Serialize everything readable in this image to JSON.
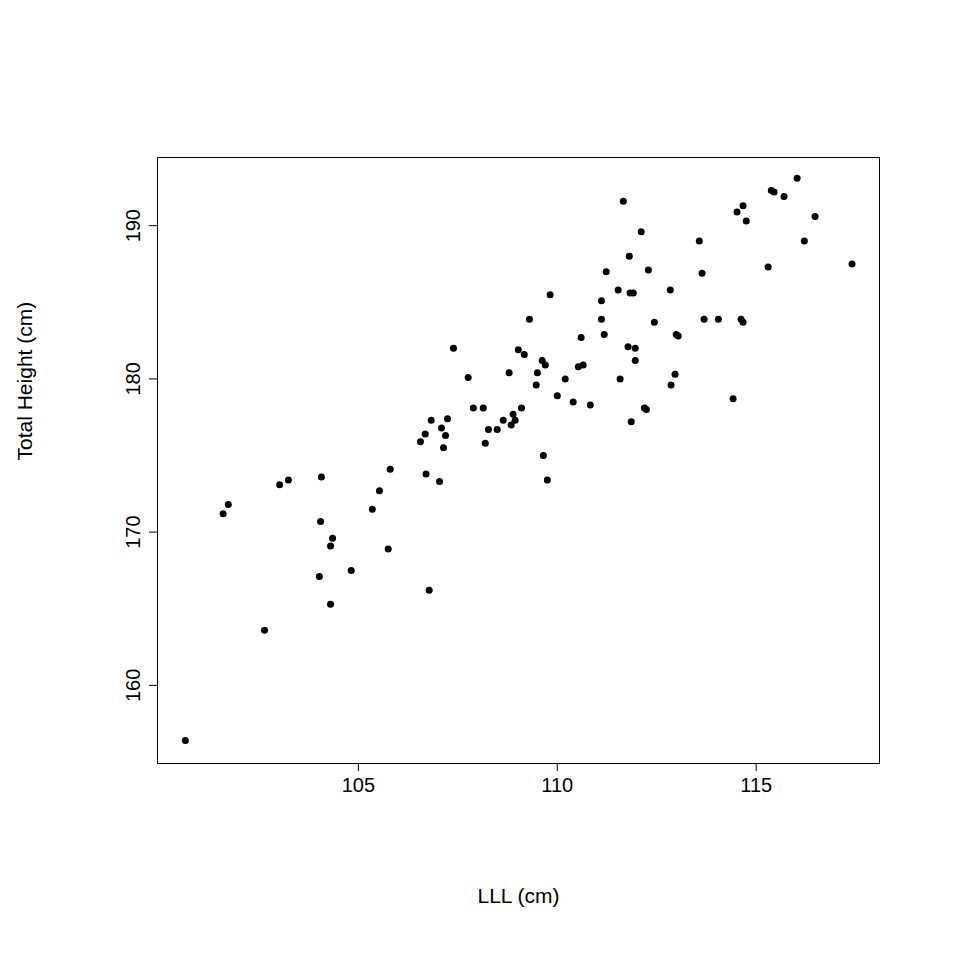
{
  "chart_data": {
    "type": "scatter",
    "x_label": "LLL (cm)",
    "y_label": "Total Height (cm)",
    "color": "#000000",
    "marker": "circle",
    "xlim": [
      99.95,
      118.1
    ],
    "ylim": [
      154.9,
      194.45
    ],
    "xticks": [
      105,
      110,
      115
    ],
    "yticks": [
      160,
      170,
      180,
      190
    ],
    "x": [
      100.65,
      101.6,
      101.73,
      102.64,
      103.02,
      103.24,
      104.07,
      104.05,
      104.02,
      104.3,
      104.3,
      104.35,
      104.82,
      105.35,
      105.53,
      105.75,
      105.8,
      106.56,
      106.68,
      106.7,
      106.78,
      106.83,
      107.04,
      107.09,
      107.14,
      107.19,
      107.24,
      107.39,
      107.76,
      107.89,
      108.14,
      108.19,
      108.27,
      108.49,
      108.64,
      108.79,
      108.84,
      108.89,
      108.94,
      109.02,
      109.1,
      109.17,
      109.3,
      109.47,
      109.5,
      109.62,
      109.65,
      109.7,
      109.75,
      109.82,
      110.0,
      110.2,
      110.4,
      110.53,
      110.65,
      110.6,
      110.83,
      111.11,
      111.11,
      111.18,
      111.23,
      111.53,
      111.58,
      111.66,
      111.78,
      111.81,
      111.83,
      111.91,
      111.86,
      111.96,
      111.96,
      112.11,
      112.19,
      112.24,
      112.29,
      112.44,
      112.84,
      112.86,
      112.96,
      112.99,
      113.04,
      113.57,
      113.64,
      113.69,
      114.05,
      114.42,
      114.52,
      114.62,
      114.67,
      114.67,
      114.75,
      115.3,
      115.38,
      115.45,
      115.7,
      116.03,
      116.21,
      116.48,
      117.41
    ],
    "values": [
      156.4,
      171.2,
      171.8,
      163.6,
      173.1,
      173.4,
      173.6,
      170.7,
      167.1,
      165.3,
      169.1,
      169.6,
      167.5,
      171.5,
      172.7,
      168.9,
      174.1,
      175.9,
      176.4,
      173.8,
      166.2,
      177.3,
      173.3,
      176.8,
      175.5,
      176.3,
      177.4,
      182.0,
      180.1,
      178.1,
      178.1,
      175.8,
      176.7,
      176.7,
      177.3,
      180.4,
      177.0,
      177.7,
      177.3,
      181.9,
      178.1,
      181.6,
      183.9,
      179.6,
      180.4,
      181.2,
      175.0,
      180.9,
      173.4,
      185.5,
      178.9,
      180.0,
      178.5,
      180.8,
      180.9,
      182.7,
      178.3,
      185.1,
      183.9,
      182.9,
      187.0,
      185.8,
      180.0,
      191.6,
      182.1,
      188.0,
      185.6,
      185.6,
      177.2,
      182.0,
      181.2,
      189.6,
      178.1,
      178.0,
      187.1,
      183.7,
      185.8,
      179.6,
      180.3,
      182.9,
      182.8,
      189.0,
      186.9,
      183.9,
      183.9,
      178.7,
      190.9,
      183.9,
      191.3,
      183.7,
      190.3,
      187.3,
      192.3,
      192.2,
      191.9,
      193.1,
      189.0,
      190.6,
      187.5
    ]
  }
}
